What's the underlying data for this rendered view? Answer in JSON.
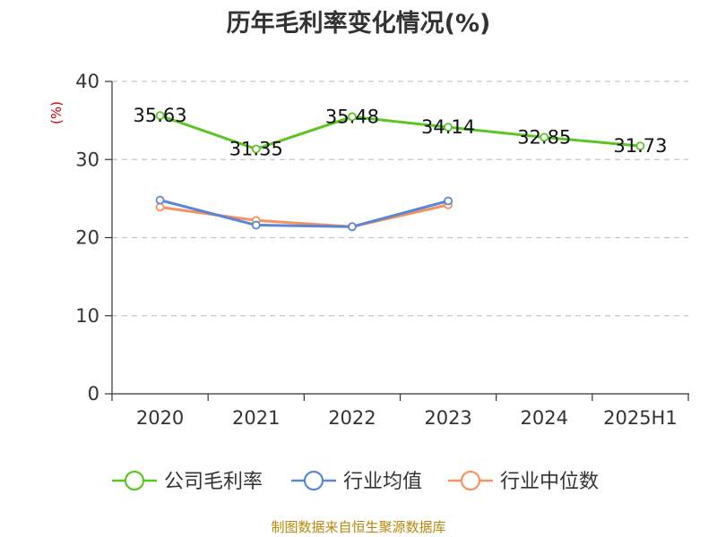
{
  "title": "历年毛利率变化情况(%)",
  "footer": "制图数据来自恒生聚源数据库",
  "chart_data": {
    "type": "line",
    "title": "历年毛利率变化情况(%)",
    "ylabel": "(%)",
    "xlabel": "",
    "categories": [
      "2020",
      "2021",
      "2022",
      "2023",
      "2024",
      "2025H1"
    ],
    "ylim": [
      0,
      40
    ],
    "yticks": [
      0,
      10,
      20,
      30,
      40
    ],
    "grid": true,
    "legend_position": "bottom",
    "series": [
      {
        "name": "公司毛利率",
        "color": "#5cc424",
        "values": [
          35.63,
          31.35,
          35.48,
          34.14,
          32.85,
          31.73
        ],
        "labels": [
          "35.63",
          "31.35",
          "35.48",
          "34.14",
          "32.85",
          "31.73"
        ]
      },
      {
        "name": "行业均值",
        "color": "#5b86d6",
        "values": [
          24.8,
          21.6,
          21.4,
          24.7,
          null,
          null
        ]
      },
      {
        "name": "行业中位数",
        "color": "#f4935f",
        "values": [
          23.9,
          22.2,
          21.4,
          24.2,
          null,
          null
        ]
      }
    ]
  }
}
